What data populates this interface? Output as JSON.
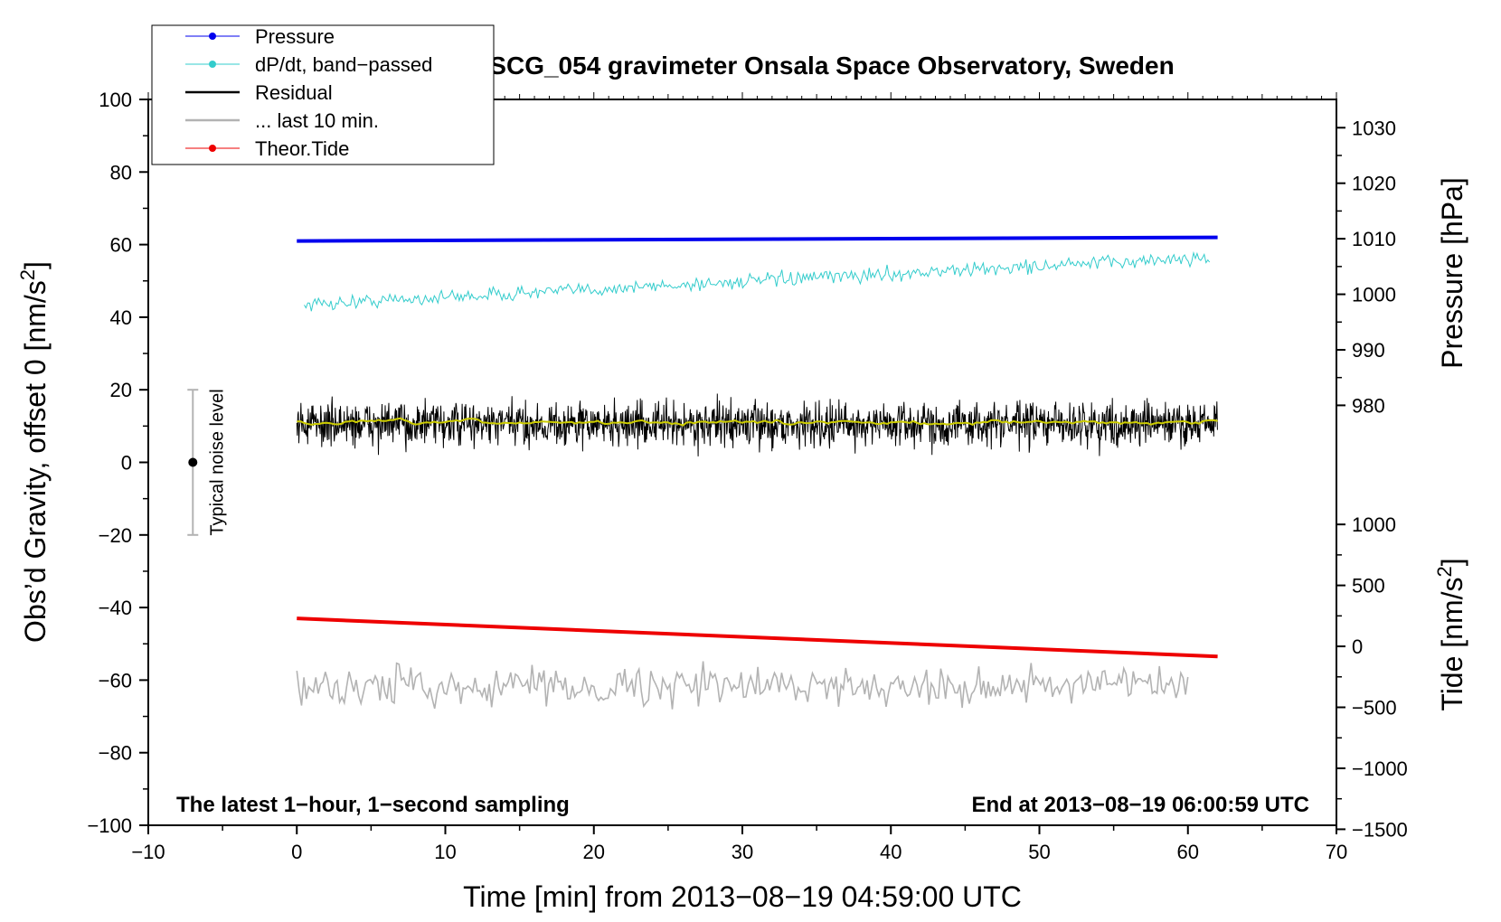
{
  "chart_data": {
    "type": "line",
    "title": "SCG_054 gravimeter Onsala Space Observatory, Sweden",
    "xlabel": "Time [min] from 2013−08−19 04:59:00 UTC",
    "ylabel_left": "Obs’d Gravity, offset 0 [nm/s",
    "ylabel_left_sup": "2",
    "ylabel_left_end": "]",
    "ylabel_pressure": "Pressure [hPa]",
    "ylabel_tide": "Tide [nm/s",
    "ylabel_tide_sup": "2",
    "ylabel_tide_end": "]",
    "xlim": [
      -10,
      70
    ],
    "ylim_left": [
      -100,
      100
    ],
    "x_ticks": [
      "−10",
      "0",
      "10",
      "20",
      "30",
      "40",
      "50",
      "60",
      "70"
    ],
    "x_tick_values": [
      -10,
      0,
      10,
      20,
      30,
      40,
      50,
      60,
      70
    ],
    "y_left_ticks": [
      "100",
      "80",
      "60",
      "40",
      "20",
      "0",
      "−20",
      "−40",
      "−60",
      "−80",
      "−100"
    ],
    "y_left_tick_values": [
      100,
      80,
      60,
      40,
      20,
      0,
      -20,
      -40,
      -60,
      -80,
      -100
    ],
    "pressure_ticks": [
      "1030",
      "1020",
      "1010",
      "1000",
      "990",
      "980"
    ],
    "pressure_tick_values": [
      1030,
      1020,
      1010,
      1000,
      990,
      980
    ],
    "tide_ticks": [
      "1000",
      "500",
      "0",
      "−500",
      "−1000",
      "−1500"
    ],
    "tide_tick_values": [
      1000,
      500,
      0,
      -500,
      -1000,
      -1500
    ],
    "annotation_left": "The latest 1−hour, 1−second sampling",
    "annotation_right": "End at 2013−08−19 06:00:59 UTC",
    "noise_label": "Typical noise level",
    "noise_bar": {
      "x": -7,
      "center": 0,
      "range": [
        -20,
        20
      ]
    },
    "legend": [
      "Pressure",
      "dP/dt, band−passed",
      "Residual",
      "... last 10 min.",
      "Theor.Tide"
    ],
    "colors": {
      "pressure": "#0000ee",
      "dpdt": "#33cccc",
      "residual": "#000000",
      "residual_smooth": "#cccc00",
      "last10": "#b3b3b3",
      "tide": "#ee0000",
      "noise_bar": "#b3b3b3"
    },
    "series": [
      {
        "name": "Pressure",
        "x_range": [
          0,
          62
        ],
        "plot_y": [
          61,
          62
        ],
        "pressure_hPa": [
          1009.6,
          1010.5
        ]
      },
      {
        "name": "dP/dt, band−passed",
        "x_range": [
          0.5,
          61.5
        ],
        "plot_y_trend": [
          43.5,
          56.5
        ],
        "noise_amplitude": 2.5
      },
      {
        "name": "Residual",
        "x_range": [
          0,
          62
        ],
        "plot_y_mean": 10.5,
        "noise_amplitude": 5
      },
      {
        "name": "... last 10 min.",
        "x_range": [
          0,
          60
        ],
        "plot_y_mean": -61.5,
        "noise_amplitude": 4
      },
      {
        "name": "Theor.Tide",
        "x_range": [
          0,
          62
        ],
        "plot_y": [
          -43,
          -53.5
        ]
      }
    ]
  }
}
